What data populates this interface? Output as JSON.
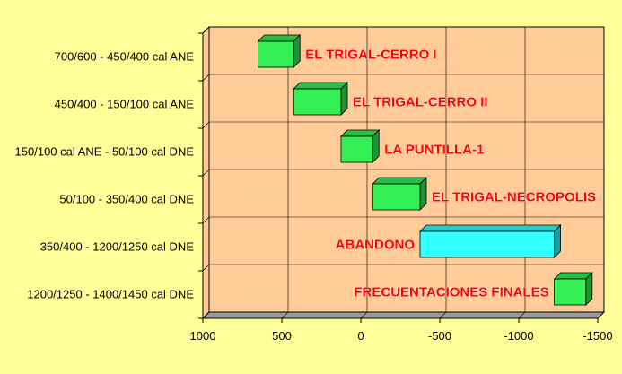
{
  "chart_data": {
    "type": "bar",
    "orientation": "horizontal",
    "subtype": "floating-range (gantt)",
    "title": "",
    "xlabel": "",
    "ylabel": "",
    "x_reversed": true,
    "xlim": [
      1000,
      -1500
    ],
    "xticks": [
      "1000",
      "500",
      "0",
      "-500",
      "-1000",
      "-1500"
    ],
    "xtick_values": [
      1000,
      500,
      0,
      -500,
      -1000,
      -1500
    ],
    "grid": true,
    "legend": "none",
    "colors": {
      "background": "#ffff99",
      "plot_area": "#ffcc99",
      "bar_green": "#33ee55",
      "bar_cyan": "#33ffff",
      "label": "#ff0000"
    },
    "categories": [
      "700/600 - 450/400 cal ANE",
      "450/400 - 150/100 cal ANE",
      "150/100 cal ANE - 50/100 cal DNE",
      "50/100 - 350/400 cal DNE",
      "350/400 - 1200/1250 cal DNE",
      "1200/1250 - 1400/1450 cal DNE"
    ],
    "series": [
      {
        "bars": [
          {
            "label": "EL TRIGAL-CERRO I",
            "start": 650,
            "end": 425,
            "color": "#33ee55"
          },
          {
            "label": "EL TRIGAL-CERRO II",
            "start": 425,
            "end": 125,
            "color": "#33ee55"
          },
          {
            "label": "LA PUNTILLA-1",
            "start": 125,
            "end": -75,
            "color": "#33ee55"
          },
          {
            "label": "EL TRIGAL-NECROPOLIS",
            "start": -75,
            "end": -375,
            "color": "#33ee55"
          },
          {
            "label": "ABANDONO",
            "start": -375,
            "end": -1225,
            "color": "#33ffff"
          },
          {
            "label": "FRECUENTACIONES FINALES",
            "start": -1225,
            "end": -1425,
            "color": "#33ee55"
          }
        ]
      }
    ]
  }
}
